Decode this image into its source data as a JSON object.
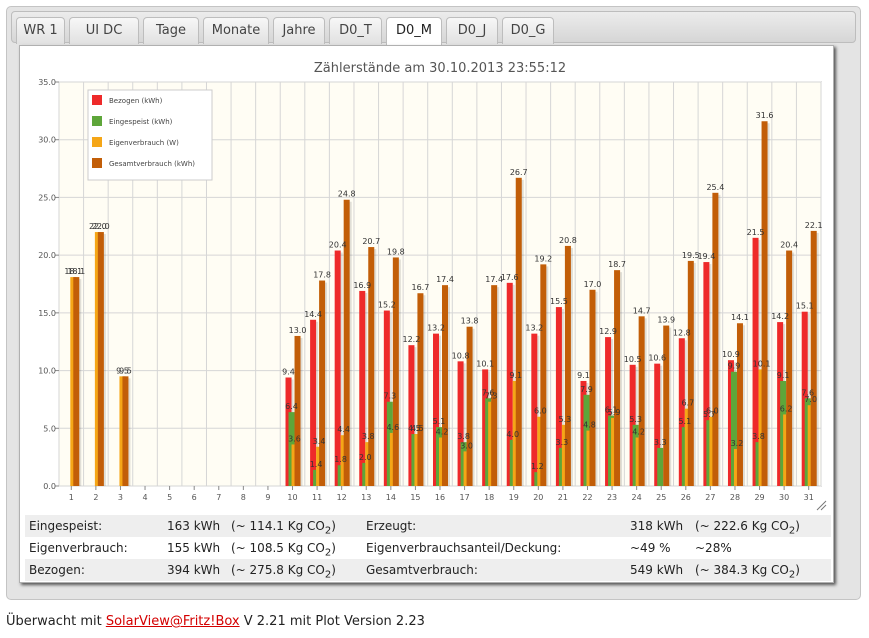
{
  "tabs": [
    "WR 1",
    "UI DC",
    "Tage",
    "Monate",
    "Jahre",
    "D0_T",
    "D0_M",
    "D0_J",
    "D0_G"
  ],
  "active_tab": 6,
  "chart_data": {
    "type": "bar",
    "title": "Zählerstände am 30.10.2013 23:55:12",
    "categories": [
      "1",
      "2",
      "3",
      "4",
      "5",
      "6",
      "7",
      "8",
      "9",
      "10",
      "11",
      "12",
      "13",
      "14",
      "15",
      "16",
      "17",
      "18",
      "19",
      "20",
      "21",
      "22",
      "23",
      "24",
      "25",
      "26",
      "27",
      "28",
      "29",
      "30",
      "31"
    ],
    "ylim": [
      0,
      35
    ],
    "yticks": [
      "0.0",
      "5.0",
      "10.0",
      "15.0",
      "20.0",
      "25.0",
      "30.0",
      "35.0"
    ],
    "grid": true,
    "legend_position": "top-left",
    "series": [
      {
        "name": "Bezogen (kWh)",
        "color": "#ee2a2a",
        "values": [
          null,
          null,
          null,
          null,
          null,
          null,
          null,
          null,
          null,
          9.4,
          14.4,
          20.4,
          16.9,
          15.2,
          12.2,
          13.2,
          10.8,
          10.1,
          17.6,
          13.2,
          15.5,
          9.1,
          12.9,
          10.5,
          10.6,
          12.8,
          19.4,
          10.9,
          21.5,
          14.2,
          15.1
        ]
      },
      {
        "name": "Eingespeist (kWh)",
        "color": "#5ea63a",
        "values": [
          null,
          null,
          null,
          null,
          null,
          null,
          null,
          null,
          null,
          6.4,
          1.4,
          1.8,
          2.0,
          7.3,
          4.5,
          5.1,
          3.8,
          7.6,
          4.0,
          1.2,
          3.3,
          7.9,
          6.1,
          5.3,
          3.3,
          5.1,
          5.7,
          9.9,
          3.8,
          9.1,
          7.6
        ]
      },
      {
        "name": "Eigenverbrauch (W)",
        "color": "#f5a617",
        "values": [
          18.1,
          22.0,
          9.5,
          null,
          null,
          null,
          null,
          null,
          null,
          3.6,
          3.4,
          4.4,
          3.8,
          4.6,
          4.5,
          4.2,
          3.0,
          7.3,
          9.1,
          6.0,
          5.3,
          4.8,
          5.9,
          4.2,
          null,
          6.7,
          6.0,
          3.2,
          10.1,
          6.2,
          7.0
        ]
      },
      {
        "name": "Gesamtverbrauch (kWh)",
        "color": "#c25e08",
        "values": [
          18.1,
          22.0,
          9.5,
          null,
          null,
          null,
          null,
          null,
          null,
          13.0,
          17.8,
          24.8,
          20.7,
          19.8,
          16.7,
          17.4,
          13.8,
          17.4,
          26.7,
          19.2,
          20.8,
          17.0,
          18.7,
          14.7,
          13.9,
          19.5,
          25.4,
          14.1,
          31.6,
          20.4,
          22.1
        ]
      }
    ]
  },
  "stats": {
    "row1": {
      "label1": "Eingespeist:",
      "value1": "163 kWh",
      "co2_1": "(~ 114.1 Kg CO",
      "label2": "Erzeugt:",
      "value2": "318 kWh",
      "co2_2": "(~ 222.6 Kg CO"
    },
    "row2": {
      "label1": "Eigenverbrauch:",
      "value1": "155 kWh",
      "co2_1": "(~ 108.5 Kg CO",
      "label2": "Eigenverbrauchsanteil/Deckung:",
      "value2": "~49 %",
      "extra2": "~28%"
    },
    "row3": {
      "label1": "Bezogen:",
      "value1": "394 kWh",
      "co2_1": "(~ 275.8 Kg CO",
      "label2": "Gesamtverbrauch:",
      "value2": "549 kWh",
      "co2_2": "(~ 384.3 Kg CO"
    },
    "sub": "2",
    "close": ")"
  },
  "footer": {
    "prefix": "Überwacht mit ",
    "link": "SolarView@Fritz!Box",
    "suffix": " V 2.21 mit Plot Version 2.23"
  }
}
